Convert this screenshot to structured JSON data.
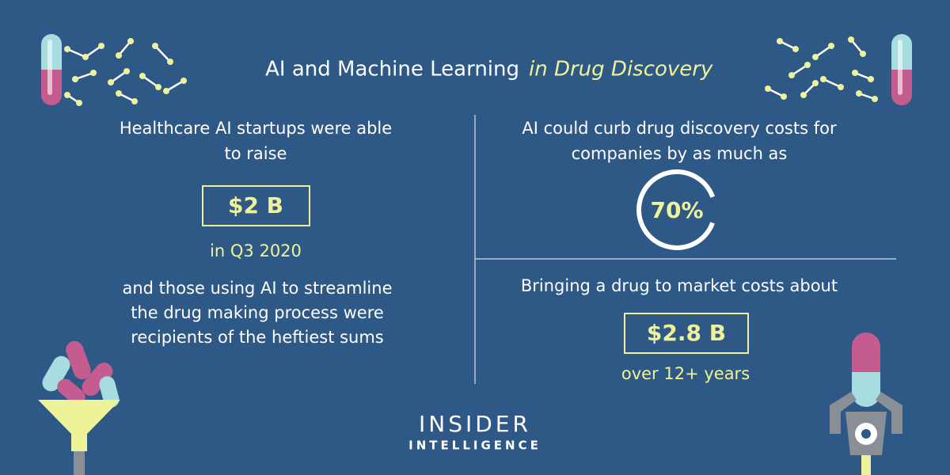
{
  "header": {
    "title": "AI and Machine Learning",
    "title_highlight": "in Drug Discovery"
  },
  "left": {
    "intro": [
      "Healthcare AI startups were able",
      "to raise"
    ],
    "figure": "$2 B",
    "period": "in Q3 2020",
    "outro": [
      "and those using AI to streamline",
      "the drug making process were",
      "recipients of the heftiest sums"
    ]
  },
  "right_top": {
    "intro": [
      "AI could curb drug discovery costs for",
      "companies by as much as"
    ],
    "figure": "70%"
  },
  "right_bottom": {
    "intro": [
      "Bringing a drug to market costs about"
    ],
    "figure": "$2.8 B",
    "period": "over 12+ years"
  },
  "footer": {
    "logo_line1": "INSIDER",
    "logo_line2": "INTELLIGENCE"
  }
}
